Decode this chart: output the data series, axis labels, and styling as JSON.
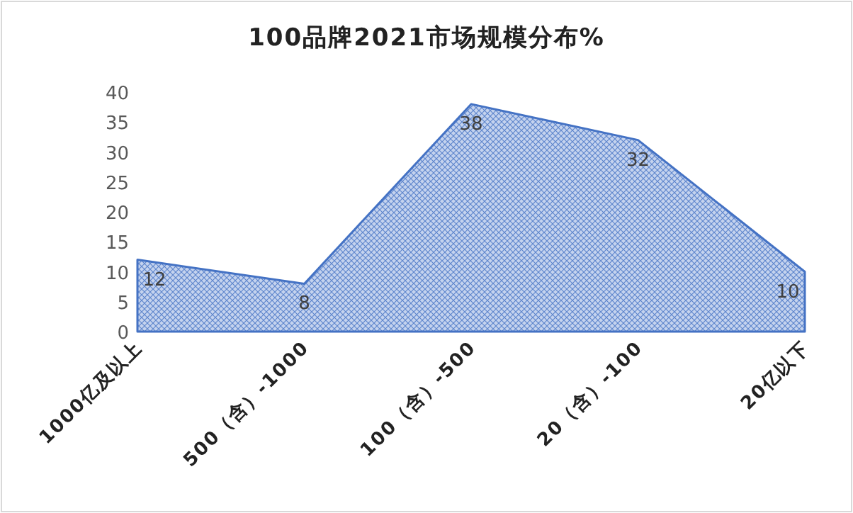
{
  "chart_data": {
    "type": "area",
    "title": "100品牌2021市场规模分布%",
    "categories": [
      "1000亿及以上",
      "500（含）-1000",
      "100（含）-500",
      "20（含）-100",
      "20亿以下"
    ],
    "values": [
      12,
      8,
      38,
      32,
      10
    ],
    "color": "#4472c4",
    "ylim": [
      0,
      40
    ],
    "yticks": [
      0,
      5,
      10,
      15,
      20,
      25,
      30,
      35,
      40
    ],
    "data_labels": true
  }
}
